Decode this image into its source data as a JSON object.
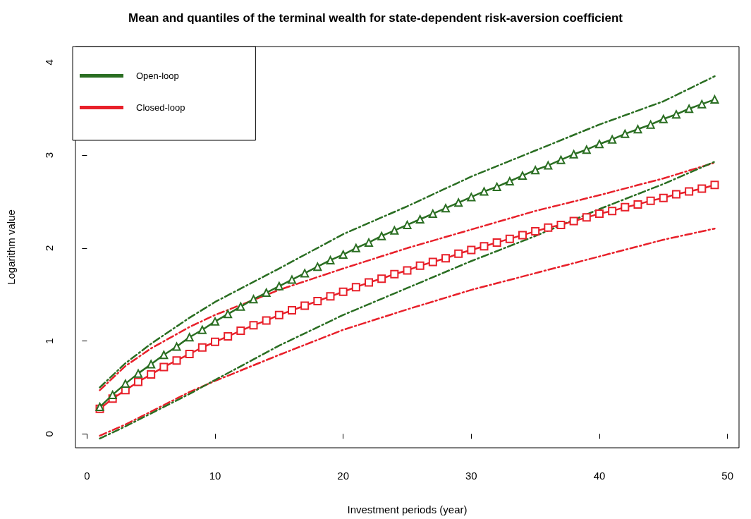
{
  "chart_data": {
    "type": "line",
    "title": "Mean and quantiles of the terminal wealth for state-dependent risk-aversion coefficient",
    "xlabel": "Investment periods (year)",
    "ylabel": "Logarithm value",
    "x": [
      1,
      2,
      3,
      4,
      5,
      6,
      7,
      8,
      9,
      10,
      11,
      12,
      13,
      14,
      15,
      16,
      17,
      18,
      19,
      20,
      21,
      22,
      23,
      24,
      25,
      26,
      27,
      28,
      29,
      30,
      31,
      32,
      33,
      34,
      35,
      36,
      37,
      38,
      39,
      40,
      41,
      42,
      43,
      44,
      45,
      46,
      47,
      48,
      49
    ],
    "xlim": [
      -0.9,
      50.9
    ],
    "xticks": [
      0,
      10,
      20,
      30,
      40,
      50
    ],
    "ylim": [
      -0.15,
      4.17
    ],
    "yticks": [
      0,
      1,
      2,
      3,
      4
    ],
    "grid": false,
    "legend": "top left",
    "series": [
      {
        "name": "Open-loop",
        "color": "#2a6e22",
        "marker": "triangle",
        "line_style": "solid",
        "values": [
          0.29,
          0.42,
          0.54,
          0.65,
          0.75,
          0.85,
          0.94,
          1.04,
          1.12,
          1.21,
          1.29,
          1.37,
          1.45,
          1.52,
          1.59,
          1.66,
          1.73,
          1.8,
          1.87,
          1.93,
          2.0,
          2.06,
          2.13,
          2.19,
          2.25,
          2.31,
          2.37,
          2.43,
          2.49,
          2.55,
          2.61,
          2.66,
          2.72,
          2.78,
          2.84,
          2.89,
          2.95,
          3.01,
          3.06,
          3.12,
          3.17,
          3.23,
          3.28,
          3.33,
          3.39,
          3.44,
          3.5,
          3.55,
          3.6
        ]
      },
      {
        "name": "Closed-loop",
        "color": "#e8202a",
        "marker": "square",
        "line_style": "solid",
        "values": [
          0.27,
          0.38,
          0.47,
          0.56,
          0.64,
          0.72,
          0.79,
          0.86,
          0.93,
          0.99,
          1.05,
          1.11,
          1.17,
          1.22,
          1.28,
          1.33,
          1.38,
          1.43,
          1.48,
          1.53,
          1.58,
          1.63,
          1.67,
          1.72,
          1.76,
          1.81,
          1.85,
          1.89,
          1.94,
          1.98,
          2.02,
          2.06,
          2.1,
          2.14,
          2.18,
          2.22,
          2.25,
          2.29,
          2.33,
          2.37,
          2.4,
          2.44,
          2.47,
          2.51,
          2.54,
          2.58,
          2.61,
          2.64,
          2.68
        ]
      },
      {
        "color": "#2a6e22",
        "marker": "none",
        "line_style": "dashed",
        "x": [
          1,
          3,
          5,
          8,
          10,
          15,
          20,
          25,
          30,
          35,
          40,
          45,
          49
        ],
        "values": [
          0.5,
          0.76,
          0.97,
          1.25,
          1.42,
          1.78,
          2.15,
          2.45,
          2.77,
          3.05,
          3.33,
          3.58,
          3.85
        ]
      },
      {
        "color": "#2a6e22",
        "marker": "none",
        "line_style": "dashed",
        "x": [
          1,
          3,
          5,
          8,
          10,
          15,
          20,
          25,
          30,
          35,
          40,
          45,
          49
        ],
        "values": [
          -0.05,
          0.08,
          0.22,
          0.43,
          0.58,
          0.95,
          1.28,
          1.57,
          1.86,
          2.13,
          2.42,
          2.69,
          2.93
        ]
      },
      {
        "color": "#e8202a",
        "marker": "none",
        "line_style": "dashed",
        "x": [
          1,
          3,
          5,
          8,
          10,
          15,
          20,
          25,
          30,
          35,
          40,
          45,
          49
        ],
        "values": [
          0.47,
          0.73,
          0.92,
          1.15,
          1.28,
          1.55,
          1.78,
          2.0,
          2.2,
          2.4,
          2.57,
          2.75,
          2.92
        ]
      },
      {
        "color": "#e8202a",
        "marker": "none",
        "line_style": "dashed",
        "x": [
          1,
          3,
          5,
          8,
          10,
          15,
          20,
          25,
          30,
          35,
          40,
          45,
          49
        ],
        "values": [
          -0.02,
          0.1,
          0.24,
          0.45,
          0.57,
          0.85,
          1.12,
          1.34,
          1.55,
          1.73,
          1.91,
          2.09,
          2.21
        ]
      }
    ]
  }
}
